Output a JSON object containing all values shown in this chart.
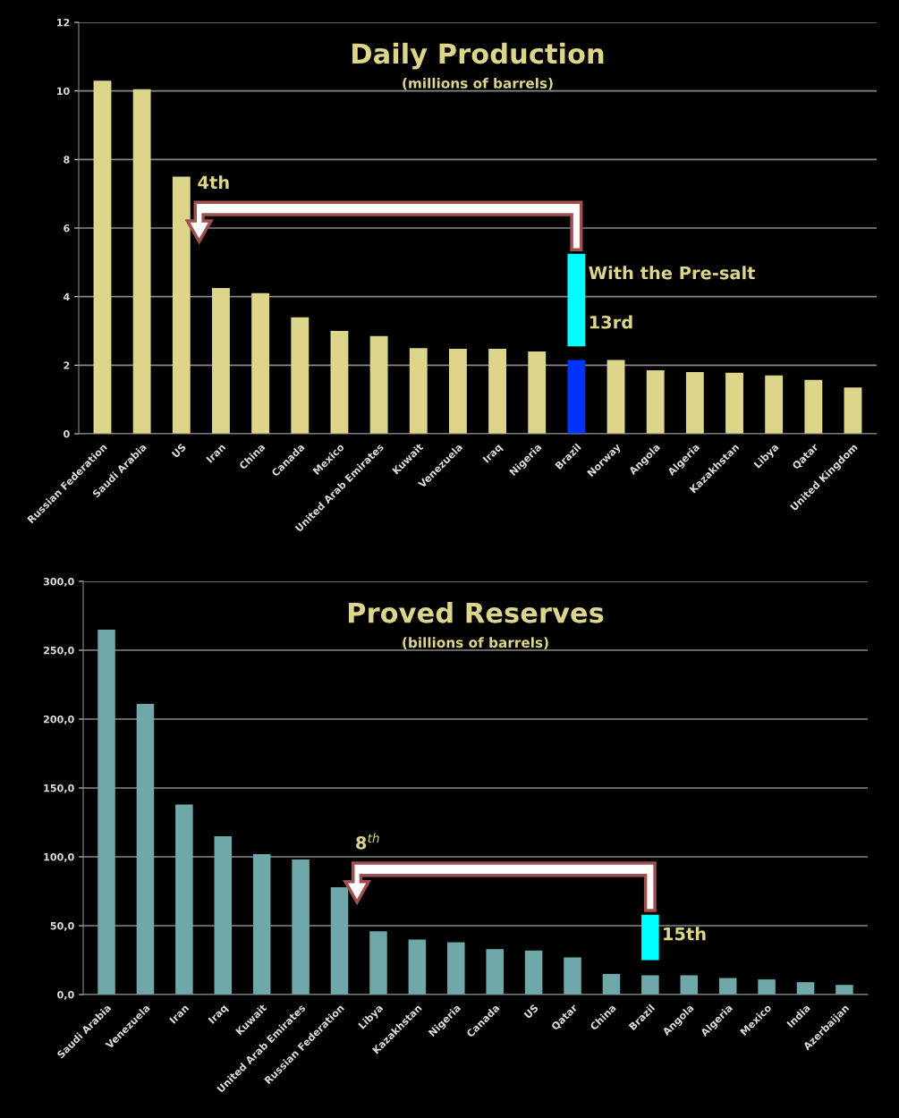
{
  "chart_data": [
    {
      "type": "bar",
      "title": "Daily Production",
      "subtitle": "(millions of barrels)",
      "categories": [
        "Russian Federation",
        "Saudi Arabia",
        "US",
        "Iran",
        "China",
        "Canada",
        "Mexico",
        "United Arab Emirates",
        "Kuwait",
        "Venezuela",
        "Iraq",
        "Nigeria",
        "Brazil",
        "Norway",
        "Angola",
        "Algeria",
        "Kazakhstan",
        "Libya",
        "Qatar",
        "United Kingdom"
      ],
      "series": [
        {
          "colors": [
            "#ddd58a",
            "#ddd58a",
            "#ddd58a",
            "#ddd58a",
            "#ddd58a",
            "#ddd58a",
            "#ddd58a",
            "#ddd58a",
            "#ddd58a",
            "#ddd58a",
            "#ddd58a",
            "#ddd58a",
            "#0033ff",
            "#ddd58a",
            "#ddd58a",
            "#ddd58a",
            "#ddd58a",
            "#ddd58a",
            "#ddd58a",
            "#ddd58a"
          ],
          "values": [
            10.3,
            10.05,
            7.5,
            4.25,
            4.1,
            3.4,
            3.0,
            2.85,
            2.5,
            2.48,
            2.48,
            2.4,
            2.15,
            2.15,
            1.85,
            1.8,
            1.78,
            1.7,
            1.57,
            1.35
          ]
        },
        {
          "color": "#00ffff",
          "base": [
            null,
            null,
            null,
            null,
            null,
            null,
            null,
            null,
            null,
            null,
            null,
            null,
            2.55,
            null,
            null,
            null,
            null,
            null,
            null,
            null
          ],
          "values": [
            null,
            null,
            null,
            null,
            null,
            null,
            null,
            null,
            null,
            null,
            null,
            null,
            2.7,
            null,
            null,
            null,
            null,
            null,
            null,
            null
          ]
        }
      ],
      "annotations": [
        "4th",
        "With the Pre-salt",
        "13rd"
      ],
      "ylim": [
        0,
        12
      ],
      "yticks": [
        0,
        2,
        4,
        6,
        8,
        10,
        12
      ],
      "grid": "y",
      "legend": false
    },
    {
      "type": "bar",
      "title": "Proved Reserves",
      "subtitle": "(billions of barrels)",
      "categories": [
        "Saudi Arabia",
        "Venezuela",
        "Iran",
        "Iraq",
        "Kuwait",
        "United Arab Emirates",
        "Russian Federation",
        "Libya",
        "Kazakhstan",
        "Nigeria",
        "Canada",
        "US",
        "Qatar",
        "China",
        "Brazil",
        "Angola",
        "Algeria",
        "Mexico",
        "India",
        "Azerbaijan"
      ],
      "series": [
        {
          "color": "#6fa8a8",
          "values": [
            265,
            211,
            138,
            115,
            102,
            98,
            78,
            46,
            40,
            38,
            33,
            32,
            27,
            15,
            14,
            14,
            12,
            11,
            9,
            7
          ]
        },
        {
          "color": "#00ffff",
          "base": [
            null,
            null,
            null,
            null,
            null,
            null,
            null,
            null,
            null,
            null,
            null,
            null,
            null,
            null,
            25,
            null,
            null,
            null,
            null,
            null
          ],
          "values": [
            null,
            null,
            null,
            null,
            null,
            null,
            null,
            null,
            null,
            null,
            null,
            null,
            null,
            null,
            33,
            null,
            null,
            null,
            null,
            null
          ]
        }
      ],
      "annotations": [
        "8$^{th}$",
        "15th"
      ],
      "ylim": [
        0,
        300
      ],
      "yticks": [
        {
          "value": 0,
          "label": "0,0"
        },
        {
          "value": 50,
          "label": "50,0"
        },
        {
          "value": 100,
          "label": "100,0"
        },
        {
          "value": 150,
          "label": "150,0"
        },
        {
          "value": 200,
          "label": "200,0"
        },
        {
          "value": 250,
          "label": "250,0"
        },
        {
          "value": 300,
          "label": "300,0"
        }
      ],
      "grid": "y",
      "legend": false
    }
  ]
}
